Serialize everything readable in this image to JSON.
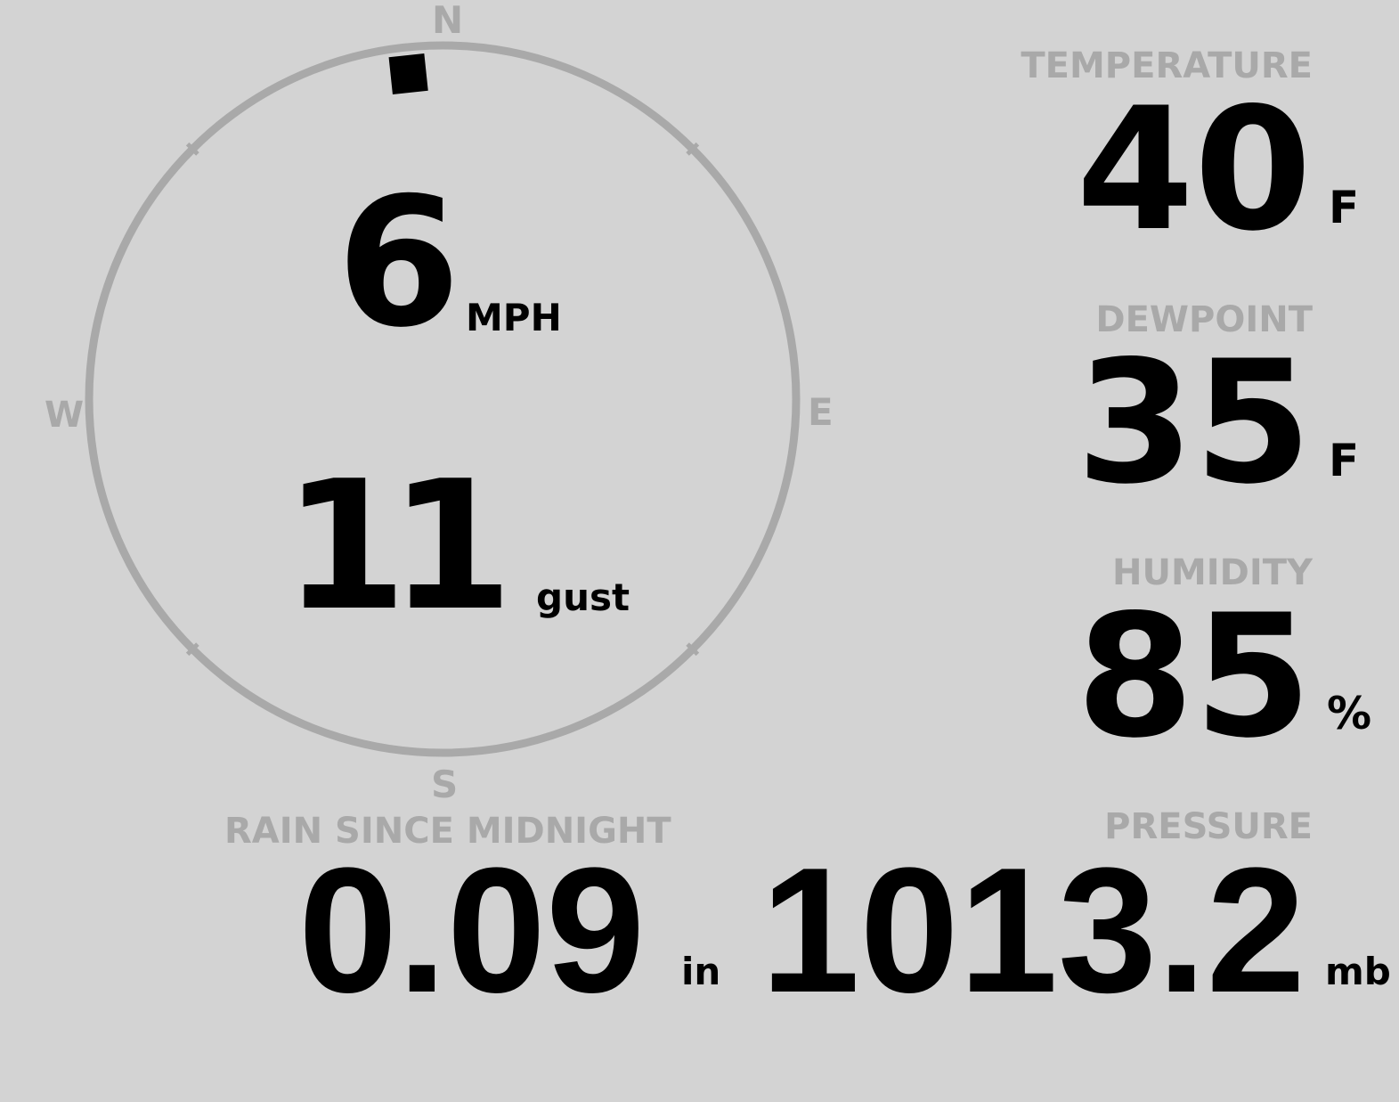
{
  "wind": {
    "speed": "6",
    "speed_unit": "MPH",
    "gust": "11",
    "gust_unit": "gust",
    "direction_degrees": 354,
    "compass": {
      "n": "N",
      "e": "E",
      "s": "S",
      "w": "W"
    }
  },
  "temperature": {
    "label": "TEMPERATURE",
    "value": "40",
    "unit": "F"
  },
  "dewpoint": {
    "label": "DEWPOINT",
    "value": "35",
    "unit": "F"
  },
  "humidity": {
    "label": "HUMIDITY",
    "value": "85",
    "unit": "%"
  },
  "pressure": {
    "label": "PRESSURE",
    "value": "1013.2",
    "unit": "mb"
  },
  "rain": {
    "label": "RAIN SINCE MIDNIGHT",
    "value": "0.09",
    "unit": "in"
  },
  "colors": {
    "background": "#d3d3d3",
    "label": "#a9a9a9",
    "value": "#000000"
  }
}
